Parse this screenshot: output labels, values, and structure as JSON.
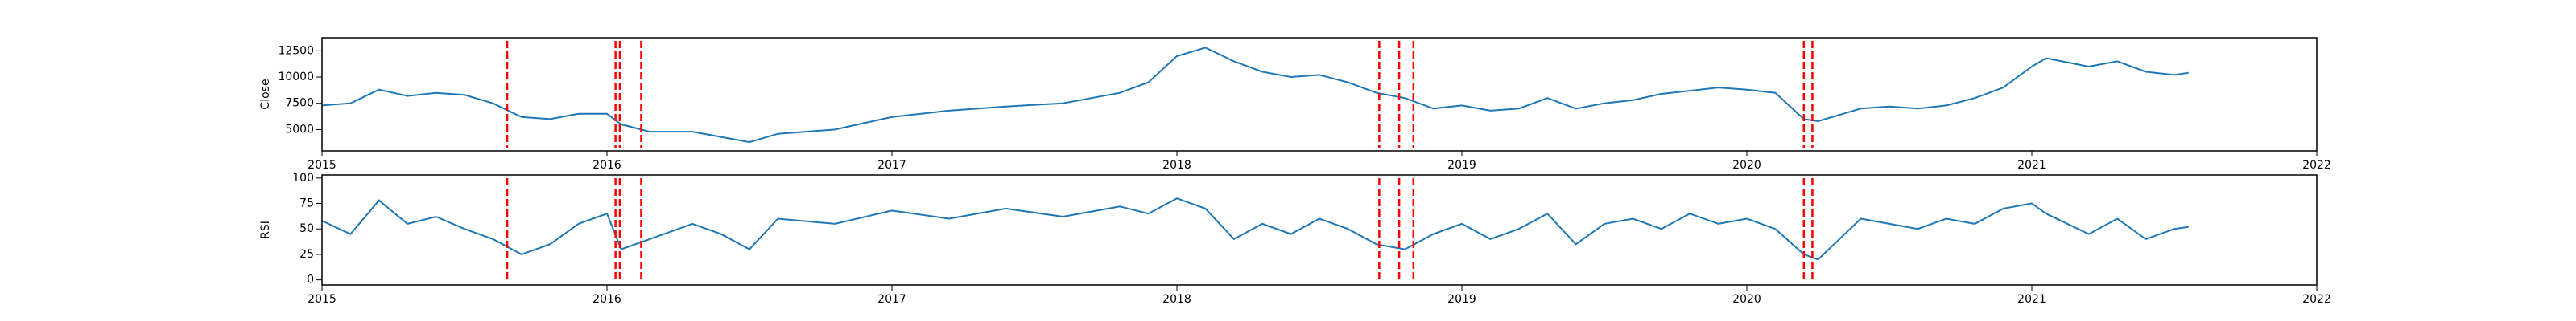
{
  "chart_data": [
    {
      "type": "line",
      "ylabel": "Close",
      "color": "#1f77b4",
      "x": [
        2015.0,
        2015.1,
        2015.2,
        2015.3,
        2015.4,
        2015.5,
        2015.6,
        2015.7,
        2015.8,
        2015.9,
        2016.0,
        2016.05,
        2016.15,
        2016.3,
        2016.4,
        2016.5,
        2016.6,
        2016.8,
        2017.0,
        2017.2,
        2017.4,
        2017.6,
        2017.8,
        2017.9,
        2018.0,
        2018.1,
        2018.2,
        2018.3,
        2018.4,
        2018.5,
        2018.6,
        2018.7,
        2018.8,
        2018.9,
        2019.0,
        2019.1,
        2019.2,
        2019.3,
        2019.4,
        2019.5,
        2019.6,
        2019.7,
        2019.8,
        2019.9,
        2020.0,
        2020.1,
        2020.2,
        2020.25,
        2020.4,
        2020.5,
        2020.6,
        2020.7,
        2020.8,
        2020.9,
        2021.0,
        2021.05,
        2021.2,
        2021.3,
        2021.4,
        2021.5,
        2021.55
      ],
      "values": [
        7300,
        7500,
        8800,
        8200,
        8500,
        8300,
        7500,
        6200,
        6000,
        6500,
        6500,
        5500,
        4800,
        4800,
        4300,
        3800,
        4600,
        5000,
        6200,
        6800,
        7200,
        7500,
        8500,
        9500,
        12000,
        12800,
        11500,
        10500,
        10000,
        10200,
        9500,
        8500,
        8000,
        7000,
        7300,
        6800,
        7000,
        8000,
        7000,
        7500,
        7800,
        8400,
        8700,
        9000,
        8800,
        8500,
        6000,
        5800,
        7000,
        7200,
        7000,
        7300,
        8000,
        9000,
        11000,
        11800,
        11000,
        11500,
        10500,
        10200,
        10400
      ],
      "xlim": [
        2015,
        2022
      ],
      "xticks": [
        2015,
        2016,
        2017,
        2018,
        2019,
        2020,
        2021,
        2022
      ],
      "ylim": [
        2970,
        13750
      ],
      "yticks": [
        5000,
        7500,
        10000,
        12500
      ],
      "vlines": [
        2015.65,
        2016.03,
        2016.045,
        2016.12,
        2018.71,
        2018.78,
        2018.83,
        2020.2,
        2020.23
      ],
      "vline_color": "red"
    },
    {
      "type": "line",
      "ylabel": "RSI",
      "color": "#1f77b4",
      "x": [
        2015.0,
        2015.1,
        2015.2,
        2015.3,
        2015.4,
        2015.5,
        2015.6,
        2015.7,
        2015.8,
        2015.9,
        2016.0,
        2016.05,
        2016.15,
        2016.3,
        2016.4,
        2016.5,
        2016.6,
        2016.8,
        2017.0,
        2017.2,
        2017.4,
        2017.6,
        2017.8,
        2017.9,
        2018.0,
        2018.1,
        2018.2,
        2018.3,
        2018.4,
        2018.5,
        2018.6,
        2018.7,
        2018.8,
        2018.9,
        2019.0,
        2019.1,
        2019.2,
        2019.3,
        2019.4,
        2019.5,
        2019.6,
        2019.7,
        2019.8,
        2019.9,
        2020.0,
        2020.1,
        2020.2,
        2020.25,
        2020.4,
        2020.5,
        2020.6,
        2020.7,
        2020.8,
        2020.9,
        2021.0,
        2021.05,
        2021.2,
        2021.3,
        2021.4,
        2021.5,
        2021.55
      ],
      "values": [
        58,
        45,
        78,
        55,
        62,
        50,
        40,
        25,
        35,
        55,
        65,
        30,
        40,
        55,
        45,
        30,
        60,
        55,
        68,
        60,
        70,
        62,
        72,
        65,
        80,
        70,
        40,
        55,
        45,
        60,
        50,
        35,
        30,
        45,
        55,
        40,
        50,
        65,
        35,
        55,
        60,
        50,
        65,
        55,
        60,
        50,
        25,
        20,
        60,
        55,
        50,
        60,
        55,
        70,
        75,
        65,
        45,
        60,
        40,
        50,
        52
      ],
      "xlim": [
        2015,
        2022
      ],
      "xticks": [
        2015,
        2016,
        2017,
        2018,
        2019,
        2020,
        2021,
        2022
      ],
      "ylim": [
        -5,
        103
      ],
      "yticks": [
        0,
        25,
        50,
        75,
        100
      ],
      "vlines": [
        2015.65,
        2016.03,
        2016.045,
        2016.12,
        2018.71,
        2018.78,
        2018.83,
        2020.2,
        2020.23
      ],
      "vline_color": "red"
    }
  ]
}
